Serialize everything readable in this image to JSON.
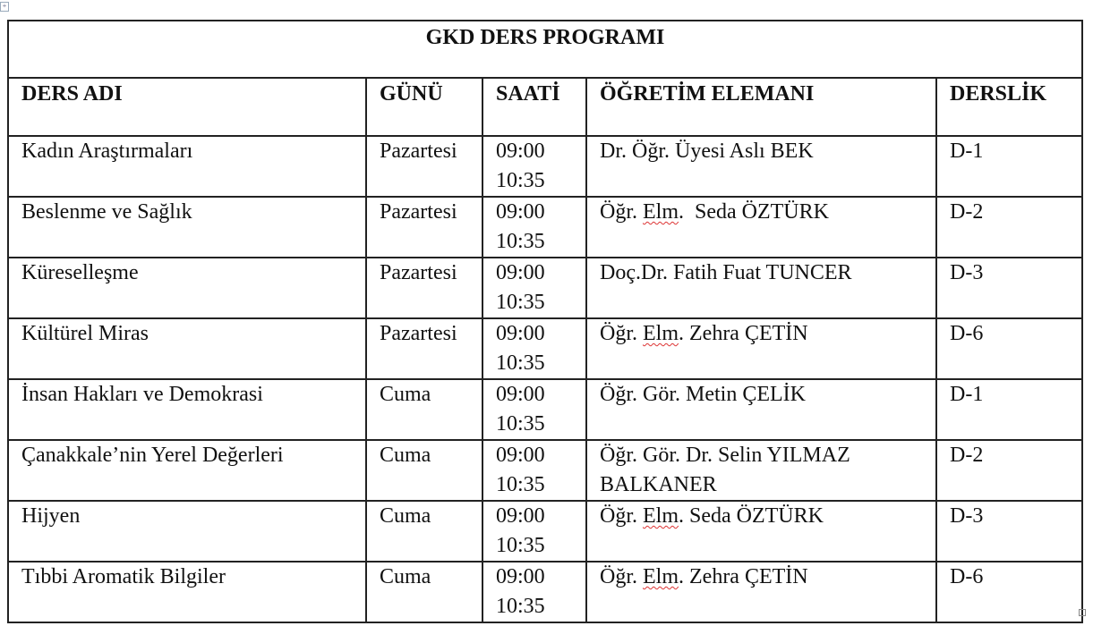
{
  "title": "GKD DERS PROGRAMI",
  "headers": {
    "course": "DERS ADI",
    "day": "GÜNÜ",
    "time": "SAATİ",
    "instructor": "ÖĞRETİM ELEMANI",
    "room": "DERSLİK"
  },
  "rows": [
    {
      "course": "Kadın Araştırmaları",
      "day": "Pazartesi",
      "start": "09:00",
      "end": "10:35",
      "instructor": "Dr. Öğr. Üyesi Aslı BEK",
      "room": "D-1"
    },
    {
      "course": "Beslenme ve Sağlık",
      "day": "Pazartesi",
      "start": "09:00",
      "end": "10:35",
      "instructor": "Öğr. Elm.  Seda ÖZTÜRK",
      "room": "D-2"
    },
    {
      "course": "Küreselleşme",
      "day": "Pazartesi",
      "start": "09:00",
      "end": "10:35",
      "instructor": "Doç.Dr. Fatih Fuat TUNCER",
      "room": "D-3"
    },
    {
      "course": "Kültürel Miras",
      "day": "Pazartesi",
      "start": "09:00",
      "end": "10:35",
      "instructor": "Öğr. Elm. Zehra ÇETİN",
      "room": "D-6"
    },
    {
      "course": "İnsan Hakları ve Demokrasi",
      "day": "Cuma",
      "start": "09:00",
      "end": "10:35",
      "instructor": "Öğr. Gör. Metin ÇELİK",
      "room": "D-1"
    },
    {
      "course": "Çanakkale’nin Yerel Değerleri",
      "day": "Cuma",
      "start": "09:00",
      "end": "10:35",
      "instructor": "Öğr. Gör. Dr. Selin YILMAZ BALKANER",
      "room": "D-2"
    },
    {
      "course": "Hijyen",
      "day": "Cuma",
      "start": "09:00",
      "end": "10:35",
      "instructor": "Öğr. Elm. Seda ÖZTÜRK",
      "room": "D-3"
    },
    {
      "course": "Tıbbi Aromatik Bilgiler",
      "day": "Cuma",
      "start": "09:00",
      "end": "10:35",
      "instructor": "Öğr. Elm. Zehra ÇETİN",
      "room": "D-6"
    }
  ]
}
